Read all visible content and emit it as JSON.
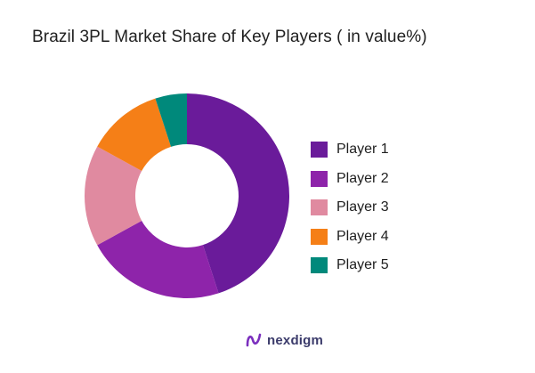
{
  "chart_data": {
    "type": "pie",
    "title": "Brazil 3PL Market Share of Key Players ( in value%)",
    "donut": true,
    "categories": [
      "Player 1",
      "Player 2",
      "Player 3",
      "Player 4",
      "Player 5"
    ],
    "values": [
      45,
      22,
      16,
      12,
      5
    ],
    "colors": [
      "#6a1b9a",
      "#8e24aa",
      "#e08aa0",
      "#f57f17",
      "#00897b"
    ],
    "legend_position": "right"
  },
  "footer": {
    "brand": "nexdigm"
  }
}
